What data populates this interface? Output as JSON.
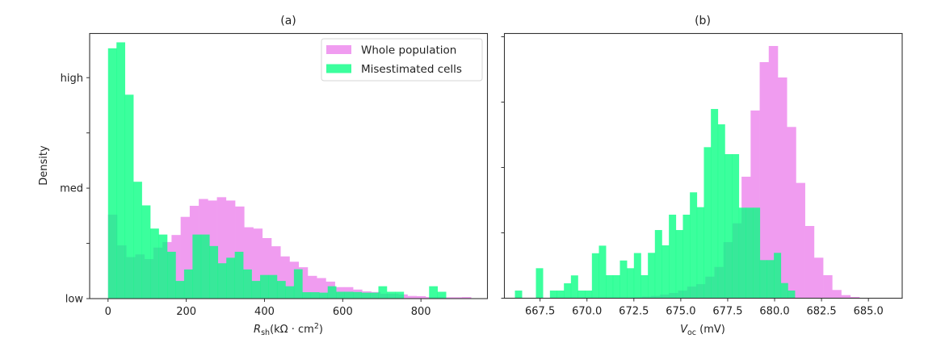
{
  "colors": {
    "whole": "#f09cf0",
    "misestimated": "#00ff7f",
    "misestimated_alpha": 0.77
  },
  "chart_data": [
    {
      "id": "a",
      "type": "histogram",
      "title": "(a)",
      "xlabel_main": "R",
      "xlabel_sub": "sh",
      "xlabel_rest": "(kΩ · cm",
      "xlabel_sup": "2",
      "xlabel_close": ")",
      "ylabel": "Density",
      "xlim": [
        -47,
        970
      ],
      "ylim": [
        0,
        1.2
      ],
      "xticks": [
        0,
        200,
        400,
        600,
        800
      ],
      "xtick_labels": [
        "0",
        "200",
        "400",
        "600",
        "800"
      ],
      "yticks": [
        0,
        0.25,
        0.5,
        0.75,
        1.0
      ],
      "ytick_labels": [
        "low",
        "",
        "med",
        "",
        "high"
      ],
      "legend": {
        "position": "top-right",
        "entries": [
          "Whole population",
          "Misestimated cells"
        ]
      },
      "series": [
        {
          "name": "Whole population",
          "bin_start": 0,
          "bin_width": 23.2,
          "values": [
            0.38,
            0.241,
            0.188,
            0.2,
            0.179,
            0.231,
            0.256,
            0.288,
            0.37,
            0.42,
            0.451,
            0.444,
            0.459,
            0.444,
            0.417,
            0.323,
            0.317,
            0.274,
            0.237,
            0.191,
            0.167,
            0.142,
            0.103,
            0.093,
            0.077,
            0.052,
            0.052,
            0.041,
            0.033,
            0.03,
            0.022,
            0.022,
            0.019,
            0.012,
            0.011,
            0.007,
            0.007,
            0.006,
            0.006,
            0.007
          ]
        },
        {
          "name": "Misestimated cells",
          "bin_start": 0,
          "bin_width": 21.6,
          "values": [
            1.133,
            1.16,
            0.923,
            0.529,
            0.422,
            0.317,
            0.29,
            0.212,
            0.08,
            0.132,
            0.29,
            0.29,
            0.238,
            0.16,
            0.185,
            0.212,
            0.132,
            0.08,
            0.107,
            0.107,
            0.08,
            0.056,
            0.133,
            0.029,
            0.029,
            0.027,
            0.056,
            0.031,
            0.031,
            0.03,
            0.027,
            0.027,
            0.056,
            0.031,
            0.031,
            0,
            0,
            0,
            0.056,
            0.031
          ]
        }
      ]
    },
    {
      "id": "b",
      "type": "histogram",
      "title": "(b)",
      "xlabel_main": "V",
      "xlabel_sub": "oc",
      "xlabel_rest": " (mV)",
      "xlabel_sup": "",
      "xlabel_close": "",
      "ylabel": "",
      "xlim": [
        665.6,
        686.8
      ],
      "ylim": [
        0,
        4.05
      ],
      "xticks": [
        667.5,
        670.0,
        672.5,
        675.0,
        677.5,
        680.0,
        682.5,
        685.0
      ],
      "xtick_labels": [
        "667.5",
        "670.0",
        "672.5",
        "675.0",
        "677.5",
        "680.0",
        "682.5",
        "685.0"
      ],
      "yticks": [
        0,
        1,
        2,
        3,
        4
      ],
      "ytick_labels": [
        "",
        "",
        "",
        "",
        ""
      ],
      "series": [
        {
          "name": "Whole population",
          "bin_start": 671.96,
          "bin_width": 0.483,
          "values": [
            0.006,
            0.012,
            0.025,
            0.035,
            0.056,
            0.08,
            0.117,
            0.179,
            0.215,
            0.33,
            0.478,
            0.858,
            1.146,
            1.859,
            2.872,
            3.612,
            3.859,
            3.377,
            2.62,
            1.764,
            1.105,
            0.62,
            0.352,
            0.126,
            0.047,
            0.019
          ]
        },
        {
          "name": "Misestimated cells",
          "bin_start": 666.16,
          "bin_width": 0.373,
          "values": [
            0.117,
            0,
            0,
            0.459,
            0,
            0.117,
            0.117,
            0.228,
            0.349,
            0.117,
            0.117,
            0.688,
            0.804,
            0.352,
            0.352,
            0.577,
            0.459,
            0.691,
            0.352,
            0.694,
            1.043,
            0.809,
            1.278,
            1.043,
            1.278,
            1.62,
            1.393,
            2.311,
            2.895,
            2.66,
            2.204,
            2.204,
            1.385,
            1.385,
            1.385,
            0.583,
            0.583,
            0.694,
            0.232,
            0.117
          ]
        }
      ]
    }
  ]
}
